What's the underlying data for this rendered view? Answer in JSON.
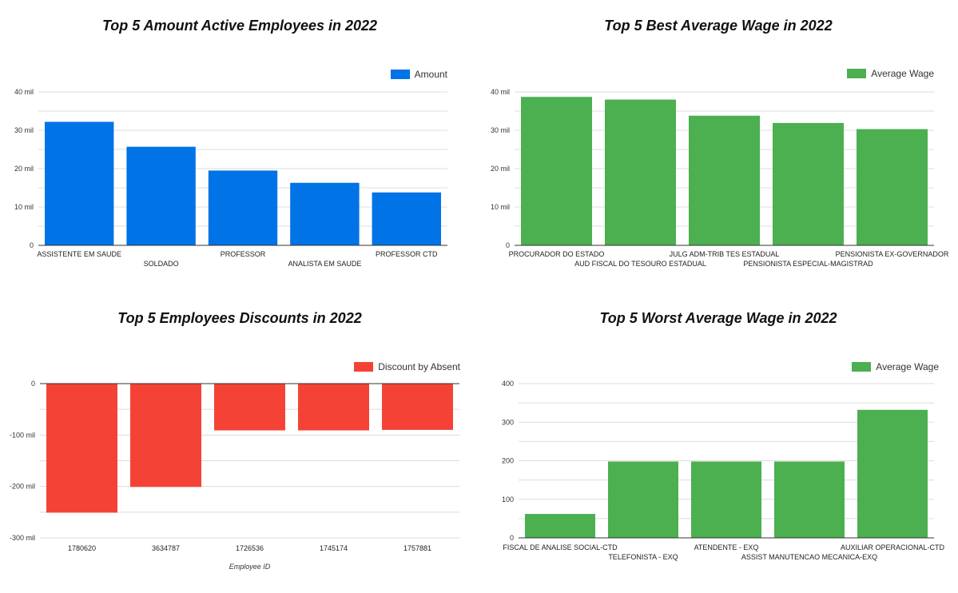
{
  "chart_data": [
    {
      "type": "bar",
      "title": "Top 5 Amount Active Employees in 2022",
      "legend": {
        "label": "Amount",
        "placement": "top-right"
      },
      "color": "#0073E6",
      "categories": [
        "ASSISTENTE EM SAUDE",
        "SOLDADO",
        "PROFESSOR",
        "ANALISTA EM SAUDE",
        "PROFESSOR CTD"
      ],
      "values": [
        32200,
        25700,
        19500,
        16300,
        13800
      ],
      "ylim": [
        0,
        40000
      ],
      "yticks": [
        0,
        10000,
        20000,
        30000,
        40000
      ],
      "ytick_labels": [
        "0",
        "10 mil",
        "20 mil",
        "30 mil",
        "40 mil"
      ],
      "xlabel": "",
      "ylabel": "",
      "grid": true
    },
    {
      "type": "bar",
      "title": "Top 5 Best Average Wage in 2022",
      "legend": {
        "label": "Average Wage",
        "placement": "top-right"
      },
      "color": "#4CAF50",
      "categories": [
        "PROCURADOR DO ESTADO",
        "AUD FISCAL DO TESOURO ESTADUAL",
        "JULG ADM-TRIB TES ESTADUAL",
        "PENSIONISTA ESPECIAL-MAGISTRAD",
        "PENSIONISTA EX-GOVERNADOR"
      ],
      "values": [
        38700,
        38000,
        33800,
        31900,
        30300
      ],
      "ylim": [
        0,
        40000
      ],
      "yticks": [
        0,
        10000,
        20000,
        30000,
        40000
      ],
      "ytick_labels": [
        "0",
        "10 mil",
        "20 mil",
        "30 mil",
        "40 mil"
      ],
      "xlabel": "",
      "ylabel": "",
      "grid": true
    },
    {
      "type": "bar",
      "title": "Top 5 Employees Discounts in 2022",
      "legend": {
        "label": "Discount by Absent",
        "placement": "top-right"
      },
      "color": "#F44336",
      "categories": [
        "1780620",
        "3634787",
        "1726536",
        "1745174",
        "1757881"
      ],
      "values": [
        -251000,
        -201000,
        -91000,
        -91000,
        -90000
      ],
      "ylim": [
        -300000,
        0
      ],
      "yticks": [
        0,
        -100000,
        -200000,
        -300000
      ],
      "ytick_labels": [
        "0",
        "-100 mil",
        "-200 mil",
        "-300 mil"
      ],
      "xlabel": "Employee ID",
      "ylabel": "",
      "grid": true
    },
    {
      "type": "bar",
      "title": "Top 5 Worst Average Wage in 2022",
      "legend": {
        "label": "Average Wage",
        "placement": "top-right"
      },
      "color": "#4CAF50",
      "categories": [
        "FISCAL DE ANALISE SOCIAL-CTD",
        "TELEFONISTA - EXQ",
        "ATENDENTE - EXQ",
        "ASSIST MANUTENCAO MECANICA-EXQ",
        "AUXILIAR OPERACIONAL-CTD"
      ],
      "values": [
        62,
        198,
        198,
        198,
        332
      ],
      "ylim": [
        0,
        400
      ],
      "yticks": [
        0,
        100,
        200,
        300,
        400
      ],
      "ytick_labels": [
        "0",
        "100",
        "200",
        "300",
        "400"
      ],
      "xlabel": "",
      "ylabel": "",
      "grid": true
    }
  ]
}
